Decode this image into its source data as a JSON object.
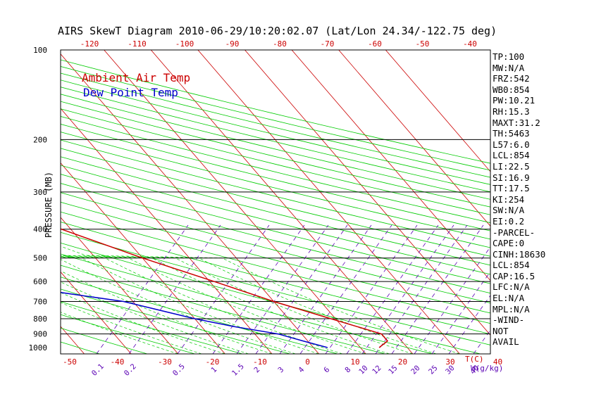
{
  "title": "AIRS SkewT Diagram 2010-06-29/10:20:02.07 (Lat/Lon 24.34/-122.75 deg)",
  "ylabel": "PRESSURE (MB)",
  "legend": [
    {
      "label": "Ambient Air Temp",
      "color": "#cc0000"
    },
    {
      "label": "Dew Point Temp",
      "color": "#0000cc"
    }
  ],
  "stats": [
    "TP:100",
    "MW:N/A",
    "FRZ:542",
    "WB0:854",
    "PW:10.21",
    "RH:15.3",
    "MAXT:31.2",
    "TH:5463",
    "L57:6.0",
    "LCL:854",
    "LI:22.5",
    "SI:16.9",
    "TT:17.5",
    "KI:254",
    "SW:N/A",
    "EI:0.2",
    "-PARCEL-",
    "CAPE:0",
    "CINH:18630",
    "LCL:854",
    "CAP:16.5",
    "LFC:N/A",
    "EL:N/A",
    "MPL:N/A",
    "-WIND-",
    "NOT",
    "AVAIL"
  ],
  "colors": {
    "temp": "#cc0000",
    "dew": "#0000cc",
    "isotherm": "#cc0000",
    "dry_adiabat": "#00cc00",
    "moist_adiabat": "#00cc00",
    "mixing_ratio": "#5a00b4",
    "isobar": "#000000"
  },
  "chart_data": {
    "type": "line",
    "title": "AIRS SkewT Diagram 2010-06-29/10:20:02.07 (Lat/Lon 24.34/-122.75 deg)",
    "ylabel": "PRESSURE (MB)",
    "x_unit_bottom": "T(C)",
    "x_unit_mixing": "W(g/kg)",
    "y_scale": "log",
    "y_ticks": [
      100,
      200,
      300,
      400,
      500,
      600,
      700,
      800,
      900,
      1000
    ],
    "isobars": [
      200,
      300,
      400,
      500,
      600,
      700,
      800,
      900
    ],
    "x_ticks_bottom": [
      -50,
      -40,
      -30,
      -20,
      -10,
      0,
      10,
      20,
      30,
      40
    ],
    "x_ticks_top": [
      -120,
      -110,
      -100,
      -90,
      -80,
      -70,
      -60,
      -50,
      -40
    ],
    "mixing_ratio_labels": [
      "0.1",
      "0.2",
      "0.5",
      "1",
      "1.5",
      "2",
      "3",
      "4",
      "6",
      "8",
      "10",
      "12",
      "15",
      "20",
      "25",
      "30",
      "40"
    ],
    "series": [
      {
        "name": "Ambient Air Temp",
        "points": [
          [
            100,
            -77
          ],
          [
            140,
            -77
          ],
          [
            150,
            -76
          ],
          [
            200,
            -63
          ],
          [
            250,
            -47
          ],
          [
            300,
            -38
          ],
          [
            400,
            -22
          ],
          [
            500,
            -10
          ],
          [
            600,
            1
          ],
          [
            700,
            10
          ],
          [
            800,
            19
          ],
          [
            900,
            27
          ],
          [
            950,
            27
          ],
          [
            1000,
            24
          ]
        ]
      },
      {
        "name": "Dew Point Temp",
        "points": [
          [
            100,
            -78
          ],
          [
            150,
            -82
          ],
          [
            200,
            -89
          ],
          [
            300,
            -84
          ],
          [
            400,
            -72
          ],
          [
            500,
            -66
          ],
          [
            600,
            -48
          ],
          [
            700,
            -22
          ],
          [
            800,
            -10
          ],
          [
            850,
            -3
          ],
          [
            900,
            5
          ],
          [
            950,
            9
          ],
          [
            1000,
            13
          ]
        ]
      }
    ]
  }
}
